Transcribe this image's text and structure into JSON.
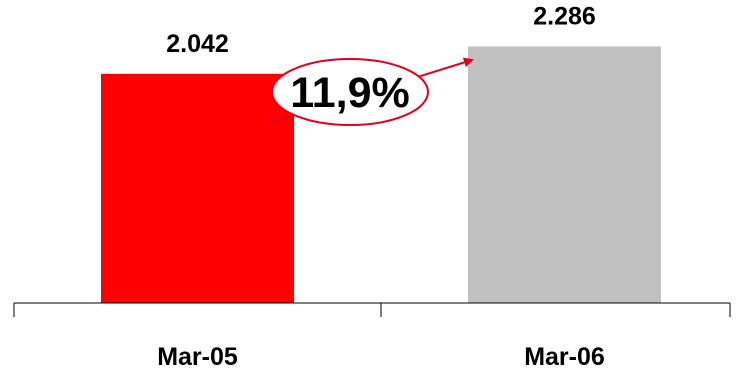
{
  "chart_data": {
    "type": "bar",
    "categories": [
      "Mar-05",
      "Mar-06"
    ],
    "values": [
      2042,
      2286
    ],
    "data_labels": [
      "2.042",
      "2.286"
    ],
    "bar_colors": [
      "#ff0000",
      "#c0c0c0"
    ],
    "annotation": {
      "text": "11,9%",
      "color": "#e0001b",
      "from_category": "Mar-05",
      "to_category": "Mar-06"
    },
    "ylim": [
      0,
      2700
    ],
    "grid": false,
    "legend": "none",
    "title": "",
    "xlabel": "",
    "ylabel": ""
  }
}
